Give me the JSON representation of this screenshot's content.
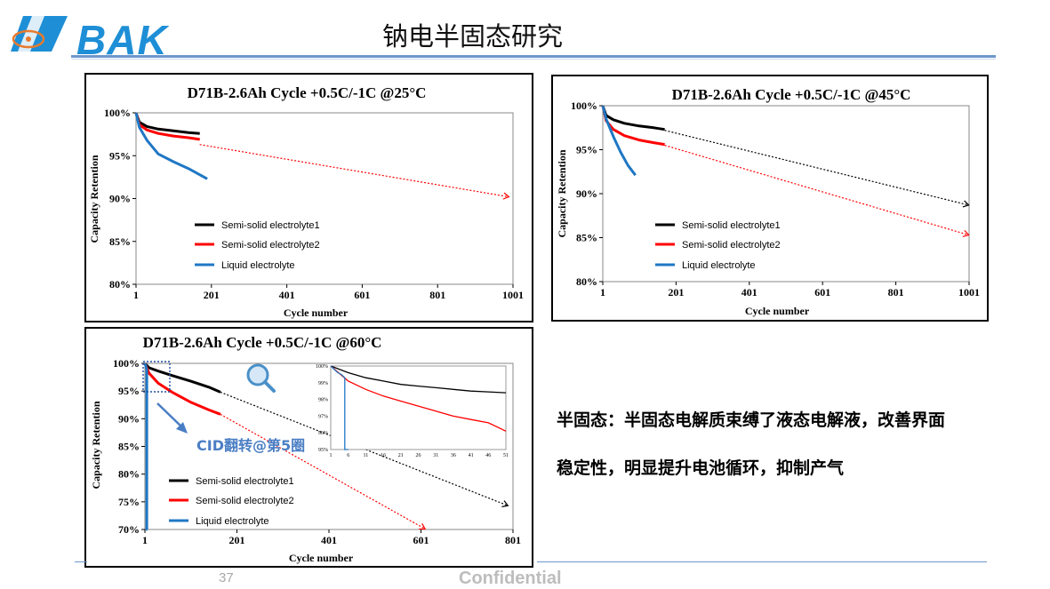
{
  "header": {
    "logo_text": "BAK",
    "page_title": "钠电半固态研究",
    "brand_color": "#1e8fd6"
  },
  "footer": {
    "page_number": "37",
    "confidential": "Confidential"
  },
  "notes": {
    "line1": "半固态：半固态电解质束缚了液态电解液，改善界面",
    "line2": "稳定性，明显提升电池循环，抑制产气"
  },
  "annotations": {
    "cid_label": "CID翻转@第5圈",
    "magnifier_icon": "magnifier-icon"
  },
  "chart_data": [
    {
      "type": "line",
      "title": "D71B-2.6Ah Cycle  +0.5C/-1C @25°C",
      "xlabel": "Cycle number",
      "ylabel": "Capacity Retention",
      "xlim": [
        1,
        1001
      ],
      "ylim": [
        80,
        100
      ],
      "x_ticks": [
        "1",
        "201",
        "401",
        "601",
        "801",
        "1001"
      ],
      "y_ticks": [
        "80%",
        "85%",
        "90%",
        "95%",
        "100%"
      ],
      "legend": "center-left",
      "grid": false,
      "series": [
        {
          "name": "Semi-solid electrolyte1",
          "color": "#000000",
          "x": [
            1,
            10,
            30,
            60,
            100,
            140,
            170
          ],
          "y": [
            100,
            98.9,
            98.4,
            98.1,
            97.9,
            97.7,
            97.6
          ]
        },
        {
          "name": "Semi-solid electrolyte2",
          "color": "#ff0000",
          "x": [
            1,
            10,
            30,
            60,
            100,
            140,
            170
          ],
          "y": [
            100,
            98.6,
            98.0,
            97.6,
            97.3,
            97.1,
            96.9
          ]
        },
        {
          "name": "Liquid electrolyte",
          "color": "#1f77c4",
          "x": [
            1,
            10,
            30,
            60,
            100,
            140,
            190
          ],
          "y": [
            100,
            98.3,
            96.8,
            95.2,
            94.3,
            93.5,
            92.3
          ]
        }
      ],
      "extrapolations": [
        {
          "color": "#ff0000",
          "x": [
            170,
            990
          ],
          "y": [
            96.3,
            90.2
          ]
        }
      ]
    },
    {
      "type": "line",
      "title": "D71B-2.6Ah Cycle  +0.5C/-1C @45°C",
      "xlabel": "Cycle number",
      "ylabel": "Capacity Retention",
      "xlim": [
        1,
        1001
      ],
      "ylim": [
        80,
        100
      ],
      "x_ticks": [
        "1",
        "201",
        "401",
        "601",
        "801",
        "1001"
      ],
      "y_ticks": [
        "80%",
        "85%",
        "90%",
        "95%",
        "100%"
      ],
      "legend": "center-left",
      "grid": false,
      "series": [
        {
          "name": "Semi-solid electrolyte1",
          "color": "#000000",
          "x": [
            1,
            10,
            30,
            60,
            100,
            140,
            170
          ],
          "y": [
            100,
            98.9,
            98.4,
            98.0,
            97.7,
            97.5,
            97.3
          ]
        },
        {
          "name": "Semi-solid electrolyte2",
          "color": "#ff0000",
          "x": [
            1,
            10,
            30,
            60,
            100,
            140,
            170
          ],
          "y": [
            100,
            98.3,
            97.3,
            96.6,
            96.1,
            95.8,
            95.6
          ]
        },
        {
          "name": "Liquid electrolyte",
          "color": "#1f77c4",
          "x": [
            1,
            10,
            30,
            50,
            70,
            90
          ],
          "y": [
            100,
            98.5,
            96.5,
            94.7,
            93.2,
            92.1
          ]
        }
      ],
      "extrapolations": [
        {
          "color": "#000000",
          "x": [
            170,
            1000
          ],
          "y": [
            97.2,
            88.7
          ]
        },
        {
          "color": "#ff0000",
          "x": [
            170,
            1000
          ],
          "y": [
            95.5,
            85.3
          ]
        }
      ]
    },
    {
      "type": "line",
      "title": "D71B-2.6Ah Cycle  +0.5C/-1C @60°C",
      "xlabel": "Cycle number",
      "ylabel": "Capacity Retention",
      "xlim": [
        1,
        801
      ],
      "ylim": [
        70,
        100
      ],
      "x_ticks": [
        "1",
        "201",
        "401",
        "601",
        "801"
      ],
      "y_ticks": [
        "70%",
        "75%",
        "80%",
        "85%",
        "90%",
        "95%",
        "100%"
      ],
      "legend": "bottom-left",
      "grid": false,
      "series": [
        {
          "name": "Semi-solid electrolyte1",
          "color": "#000000",
          "x": [
            1,
            10,
            30,
            60,
            100,
            140,
            165
          ],
          "y": [
            100,
            99.2,
            98.6,
            97.8,
            96.8,
            95.7,
            94.8
          ]
        },
        {
          "name": "Semi-solid electrolyte2",
          "color": "#ff0000",
          "x": [
            1,
            10,
            30,
            60,
            100,
            140,
            165
          ],
          "y": [
            100,
            98.2,
            96.4,
            94.8,
            93.0,
            91.6,
            90.8
          ]
        },
        {
          "name": "Liquid electrolyte",
          "color": "#1f77c4",
          "x": [
            1,
            3,
            5,
            5,
            6
          ],
          "y": [
            100,
            99.5,
            98.8,
            70,
            70
          ]
        }
      ],
      "extrapolations": [
        {
          "color": "#000000",
          "x": [
            165,
            790
          ],
          "y": [
            94.8,
            74.3
          ]
        },
        {
          "color": "#ff0000",
          "x": [
            165,
            610
          ],
          "y": [
            90.8,
            70.1
          ]
        }
      ],
      "inset": {
        "xlim": [
          1,
          51
        ],
        "ylim": [
          95,
          100
        ],
        "x_ticks": [
          "1",
          "6",
          "11",
          "16",
          "21",
          "26",
          "31",
          "36",
          "41",
          "46",
          "51"
        ],
        "y_ticks": [
          "95%",
          "96%",
          "97%",
          "98%",
          "99%",
          "100%"
        ],
        "series": [
          {
            "color": "#000000",
            "x": [
              1,
              6,
              11,
              16,
              21,
              26,
              31,
              36,
              41,
              46,
              51
            ],
            "y": [
              100,
              99.6,
              99.3,
              99.1,
              98.9,
              98.8,
              98.7,
              98.6,
              98.5,
              98.45,
              98.4
            ]
          },
          {
            "color": "#ff0000",
            "x": [
              1,
              6,
              11,
              16,
              21,
              26,
              31,
              36,
              41,
              46,
              51
            ],
            "y": [
              100,
              99.1,
              98.6,
              98.2,
              97.9,
              97.6,
              97.3,
              97.0,
              96.8,
              96.6,
              96.1
            ]
          },
          {
            "color": "#1f77c4",
            "x": [
              1,
              2,
              3,
              4,
              5,
              5,
              6
            ],
            "y": [
              100,
              99.8,
              99.6,
              99.5,
              99.3,
              95,
              95
            ]
          }
        ]
      }
    }
  ]
}
